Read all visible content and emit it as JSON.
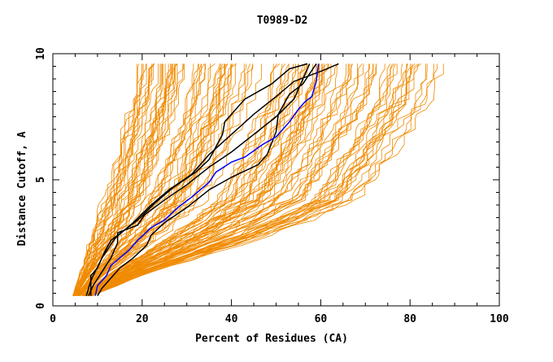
{
  "chart_data": {
    "type": "line",
    "title": "T0989-D2",
    "xlabel": "Percent of Residues (CA)",
    "ylabel": "Distance Cutoff, A",
    "xlim": [
      0,
      100
    ],
    "ylim": [
      0,
      10
    ],
    "x_ticks": [
      0,
      20,
      40,
      60,
      80,
      100
    ],
    "y_ticks": [
      0,
      5,
      10
    ],
    "grid": false,
    "colors": {
      "background_models": "#f08a00",
      "highlight_black": "#000000",
      "highlight_blue": "#0000ff"
    },
    "series": [
      {
        "color": "black",
        "points": [
          [
            8.5,
            0.4
          ],
          [
            8.5,
            1.2
          ],
          [
            10,
            1.5
          ],
          [
            11.5,
            2.1
          ],
          [
            13,
            2.6
          ],
          [
            16,
            3.0
          ],
          [
            19,
            3.4
          ],
          [
            23,
            4.1
          ],
          [
            27,
            4.7
          ],
          [
            32,
            5.3
          ],
          [
            35,
            5.8
          ],
          [
            38,
            6.8
          ],
          [
            38.5,
            7.3
          ],
          [
            43,
            8.2
          ],
          [
            49,
            8.8
          ],
          [
            53,
            9.4
          ],
          [
            57,
            9.6
          ]
        ]
      },
      {
        "color": "black",
        "points": [
          [
            7.5,
            0.4
          ],
          [
            8.5,
            1.0
          ],
          [
            11,
            1.9
          ],
          [
            14,
            2.7
          ],
          [
            18,
            3.3
          ],
          [
            22,
            4.0
          ],
          [
            26,
            4.6
          ],
          [
            31,
            5.2
          ],
          [
            35,
            6.0
          ],
          [
            40,
            6.8
          ],
          [
            45,
            7.6
          ],
          [
            50,
            8.3
          ],
          [
            54,
            8.9
          ],
          [
            60,
            9.3
          ],
          [
            64,
            9.6
          ]
        ]
      },
      {
        "color": "black",
        "points": [
          [
            8,
            0.4
          ],
          [
            9,
            0.8
          ],
          [
            13,
            1.9
          ],
          [
            14.5,
            2.5
          ],
          [
            14.5,
            2.9
          ],
          [
            19,
            3.2
          ],
          [
            20.5,
            3.6
          ],
          [
            25,
            4.2
          ],
          [
            30,
            4.8
          ],
          [
            35,
            5.5
          ],
          [
            40,
            6.1
          ],
          [
            45,
            6.8
          ],
          [
            50,
            7.5
          ],
          [
            54,
            8.2
          ],
          [
            55,
            8.6
          ],
          [
            57.5,
            9.6
          ]
        ]
      },
      {
        "color": "black",
        "points": [
          [
            10,
            0.4
          ],
          [
            11,
            0.7
          ],
          [
            15,
            1.5
          ],
          [
            18,
            1.9
          ],
          [
            21,
            2.4
          ],
          [
            22,
            2.8
          ],
          [
            25,
            3.3
          ],
          [
            30,
            3.9
          ],
          [
            35,
            4.6
          ],
          [
            40,
            5.1
          ],
          [
            46,
            5.6
          ],
          [
            48,
            6.0
          ],
          [
            50,
            6.9
          ],
          [
            50.5,
            7.6
          ],
          [
            53,
            8.4
          ],
          [
            56,
            8.8
          ],
          [
            59,
            9.6
          ]
        ]
      },
      {
        "color": "blue",
        "points": [
          [
            9.5,
            0.4
          ],
          [
            10,
            0.8
          ],
          [
            12,
            1.2
          ],
          [
            13,
            1.6
          ],
          [
            15,
            1.9
          ],
          [
            17,
            2.2
          ],
          [
            19,
            2.6
          ],
          [
            22,
            3.1
          ],
          [
            25,
            3.4
          ],
          [
            28,
            3.9
          ],
          [
            31,
            4.3
          ],
          [
            35,
            4.9
          ],
          [
            36.5,
            5.3
          ],
          [
            40,
            5.7
          ],
          [
            43,
            5.9
          ],
          [
            47,
            6.4
          ],
          [
            50,
            6.7
          ],
          [
            53,
            7.3
          ],
          [
            55,
            7.8
          ],
          [
            56.5,
            8.1
          ],
          [
            58,
            8.3
          ],
          [
            59,
            8.9
          ],
          [
            59.5,
            9.6
          ]
        ]
      }
    ],
    "background_envelope": {
      "min": [
        [
          4.5,
          0.4
        ],
        [
          6,
          1.2
        ],
        [
          8,
          2.4
        ],
        [
          10,
          3.6
        ],
        [
          12,
          4.8
        ],
        [
          14,
          6.0
        ],
        [
          16,
          7.2
        ],
        [
          17.5,
          8.4
        ],
        [
          18.5,
          9.6
        ]
      ],
      "max": [
        [
          9,
          0.4
        ],
        [
          20,
          1.2
        ],
        [
          35,
          2.0
        ],
        [
          50,
          2.8
        ],
        [
          62,
          3.6
        ],
        [
          70,
          4.2
        ],
        [
          74,
          5.0
        ],
        [
          78,
          6.0
        ],
        [
          82,
          7.0
        ],
        [
          86,
          8.0
        ],
        [
          88,
          9.0
        ],
        [
          89,
          9.6
        ]
      ],
      "count": 130
    }
  }
}
